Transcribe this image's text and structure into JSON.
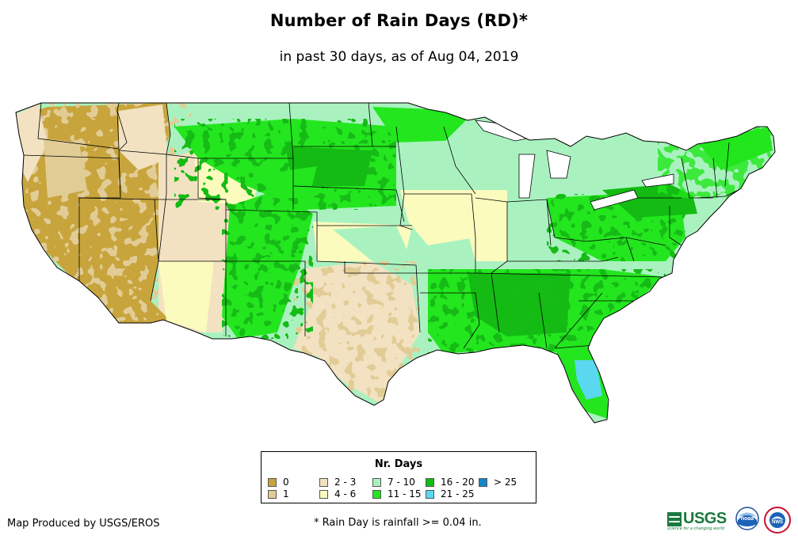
{
  "title": "Number of Rain Days (RD)*",
  "subtitle": "in past 30 days, as of Aug 04, 2019",
  "legend": {
    "title": "Nr. Days",
    "items": [
      {
        "label": "0",
        "color": "#c8a53c"
      },
      {
        "label": "1",
        "color": "#e2cc96"
      },
      {
        "label": "2 - 3",
        "color": "#f2e2c2"
      },
      {
        "label": "4 - 6",
        "color": "#fbfbbe"
      },
      {
        "label": "7 - 10",
        "color": "#a9f2c0"
      },
      {
        "label": "11 - 15",
        "color": "#23e61e"
      },
      {
        "label": "16 - 20",
        "color": "#13bb13"
      },
      {
        "label": "21 - 25",
        "color": "#5ad8f0"
      },
      {
        "label": "> 25",
        "color": "#1686c6"
      }
    ]
  },
  "credit": "Map Produced by USGS/EROS",
  "footnote": "* Rain Day is rainfall >= 0.04 in.",
  "logos": {
    "usgs": "USGS",
    "usgs_tagline": "science for a changing world",
    "noaa": "noaa",
    "nws": "NWS"
  }
}
